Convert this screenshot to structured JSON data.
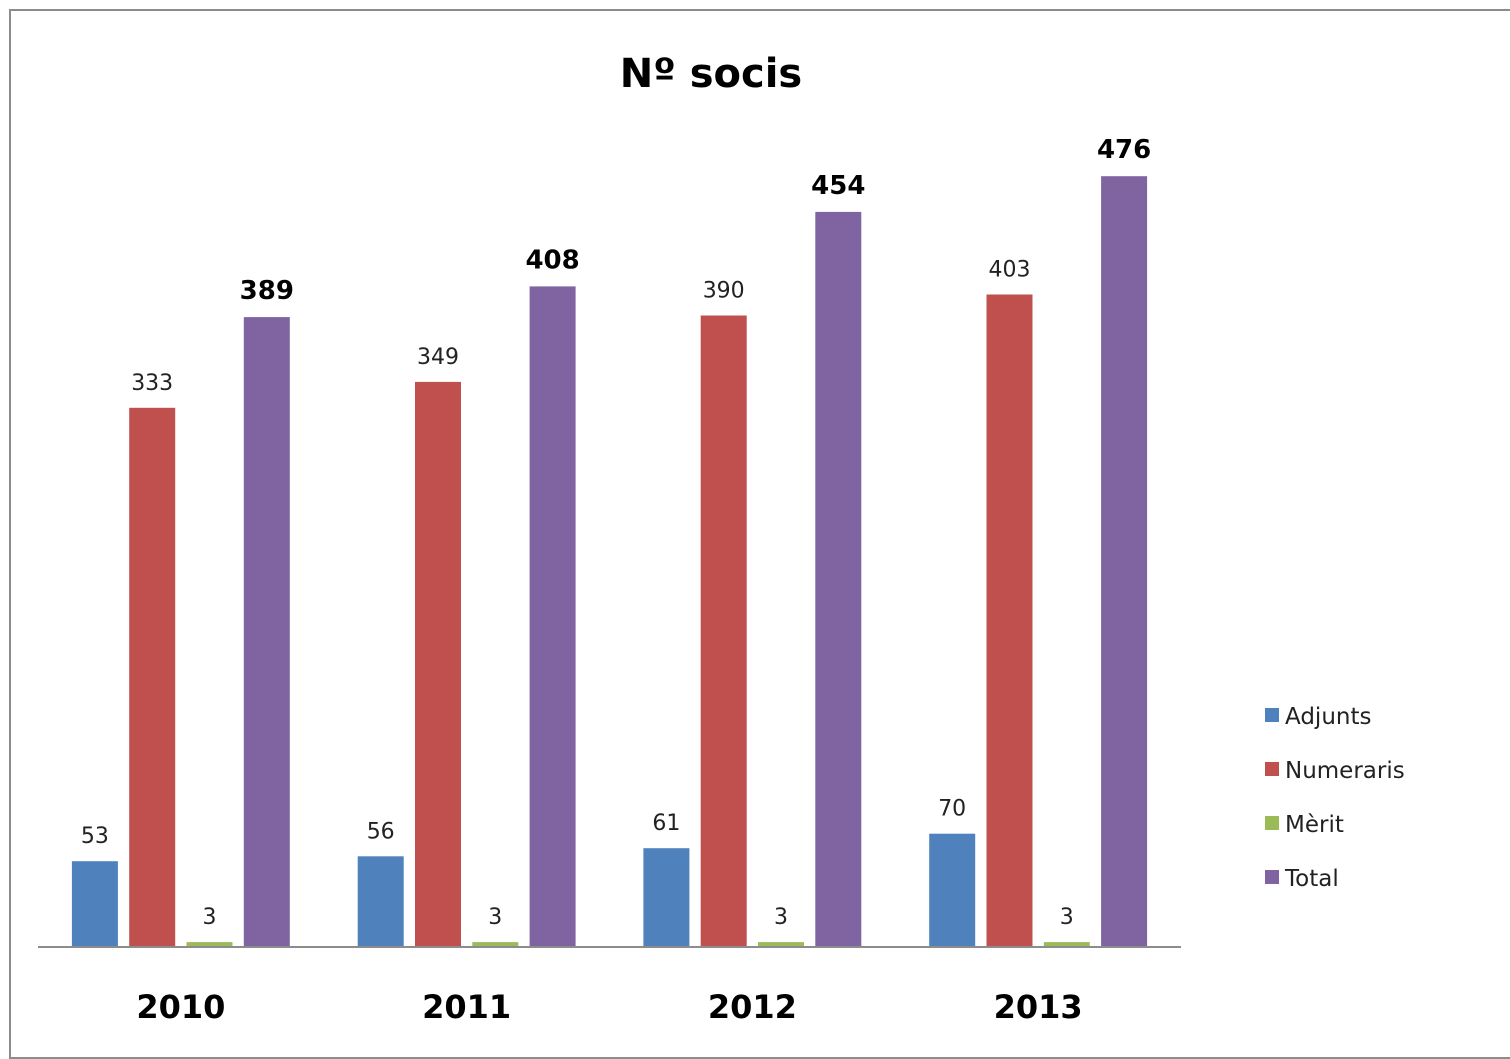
{
  "chart_data": {
    "type": "bar",
    "title": "Nº socis",
    "categories": [
      "2010",
      "2011",
      "2012",
      "2013"
    ],
    "series": [
      {
        "name": "Adjunts",
        "color": "#4f81bd",
        "values": [
          53,
          56,
          61,
          70
        ]
      },
      {
        "name": "Numeraris",
        "color": "#c0504d",
        "values": [
          333,
          349,
          390,
          403
        ]
      },
      {
        "name": "Mèrit",
        "color": "#9bbb59",
        "values": [
          3,
          3,
          3,
          3
        ]
      },
      {
        "name": "Total",
        "color": "#8064a2",
        "values": [
          389,
          408,
          454,
          476
        ],
        "bold_labels": true
      }
    ],
    "ylim": [
      0,
      520
    ],
    "grid": false,
    "legend_position": "right"
  }
}
